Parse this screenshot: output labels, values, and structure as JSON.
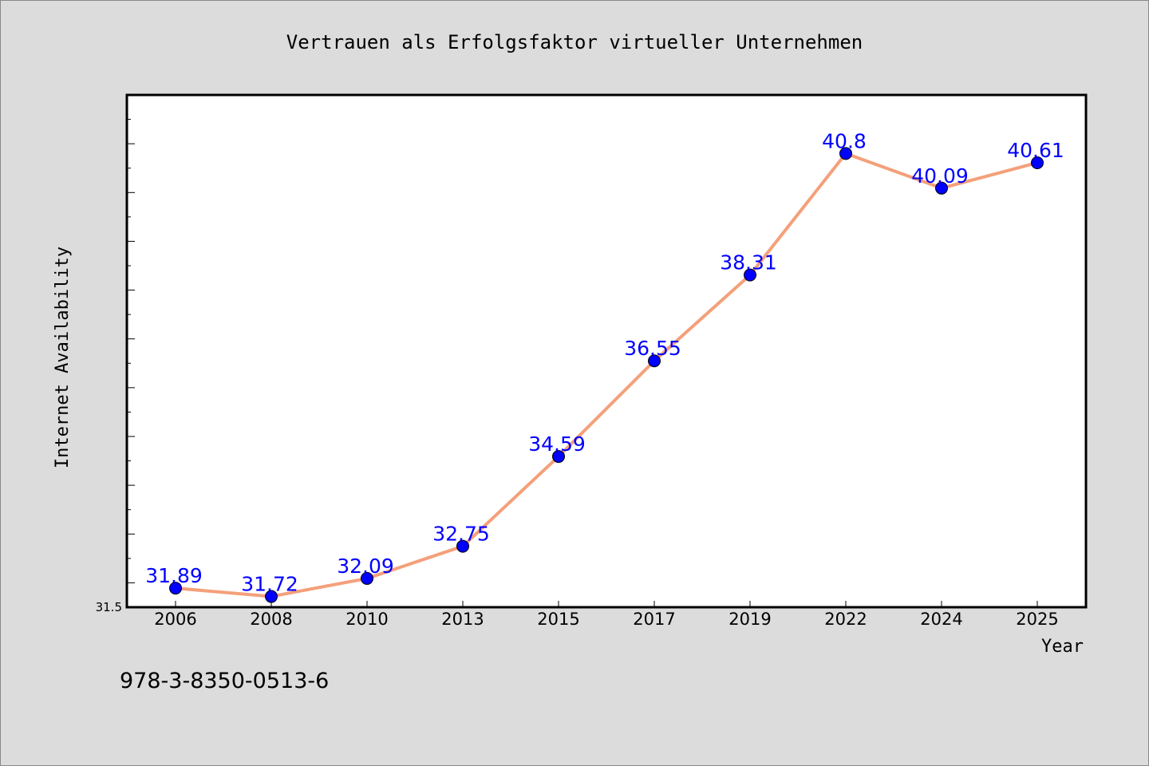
{
  "chart_data": {
    "type": "line",
    "title": "Vertrauen als Erfolgsfaktor virtueller Unternehmen",
    "xlabel": "Year",
    "ylabel": "Internet Availability",
    "categories": [
      "2006",
      "2008",
      "2010",
      "2013",
      "2015",
      "2017",
      "2019",
      "2022",
      "2024",
      "2025"
    ],
    "series": [
      {
        "values": [
          31.89,
          31.72,
          32.09,
          32.75,
          34.59,
          36.55,
          38.31,
          40.8,
          40.09,
          40.61
        ],
        "labels": [
          "31.89",
          "31.72",
          "32.09",
          "32.75",
          "34.59",
          "36.55",
          "38.31",
          "40.8",
          "40.09",
          "40.61"
        ],
        "line_color": "#f4a07a",
        "marker_color": "#0000ff"
      }
    ],
    "ylim": [
      31.5,
      42.0
    ],
    "ytick_labels": [
      "31.5"
    ],
    "grid": false,
    "legend": "none"
  },
  "footer_text": "978-3-8350-0513-6",
  "colors": {
    "background": "#dcdcdc",
    "plot_area": "#ffffff",
    "line": "#f4a07a",
    "marker": "#0000ff",
    "data_label": "#0000ff"
  }
}
